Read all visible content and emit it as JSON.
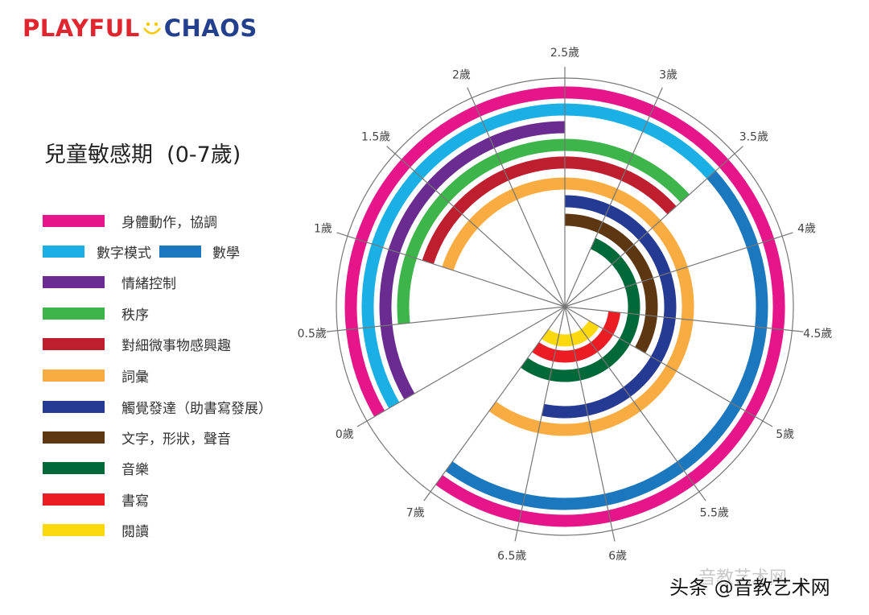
{
  "logo": {
    "part1": "PLAYFUL",
    "part2": "CHAOS"
  },
  "title": "兒童敏感期  (0-7歲)",
  "legend": [
    {
      "label": "身體動作，協調",
      "color": "#e6168a"
    },
    {
      "label": "數字模式",
      "color": "#1ab0e6",
      "label2": "數學",
      "color2": "#1b78bf"
    },
    {
      "label": "情緒控制",
      "color": "#6a2c91"
    },
    {
      "label": "秩序",
      "color": "#3db54a"
    },
    {
      "label": "對細微事物感興趣",
      "color": "#be1e2d"
    },
    {
      "label": "詞彙",
      "color": "#f9ac41"
    },
    {
      "label": "觸覺發達（助書寫發展）",
      "color": "#253a93"
    },
    {
      "label": "文字，形狀，聲音",
      "color": "#5c3712"
    },
    {
      "label": "音樂",
      "color": "#00693a"
    },
    {
      "label": "書寫",
      "color": "#ec1c24"
    },
    {
      "label": "閱讀",
      "color": "#fcd80e"
    }
  ],
  "watermark": {
    "text": "头条 @音教艺术网",
    "faint": "音教艺术网"
  },
  "chart_data": {
    "type": "radial-timeline",
    "title": "兒童敏感期 (0-7歲)",
    "unit": "歲",
    "ticks": [
      "0歲",
      "0.5歲",
      "1歲",
      "1.5歲",
      "2歲",
      "2.5歲",
      "3歲",
      "3.5歲",
      "4歲",
      "4.5歲",
      "5歲",
      "5.5歲",
      "6歲",
      "6.5歲",
      "7歲"
    ],
    "tick_values": [
      0,
      0.5,
      1,
      1.5,
      2,
      2.5,
      3,
      3.5,
      4,
      4.5,
      5,
      5.5,
      6,
      6.5,
      7
    ],
    "series": [
      {
        "name": "身體動作，協調",
        "color": "#e6168a",
        "start": 0,
        "end": 7,
        "ring": 1
      },
      {
        "name": "數字模式",
        "color": "#1ab0e6",
        "start": 0,
        "end": 3.5,
        "ring": 2
      },
      {
        "name": "數學",
        "color": "#1b78bf",
        "start": 3.5,
        "end": 7,
        "ring": 2
      },
      {
        "name": "情緒控制",
        "color": "#6a2c91",
        "start": 0,
        "end": 2.5,
        "ring": 3
      },
      {
        "name": "秩序",
        "color": "#3db54a",
        "start": 0.5,
        "end": 3.5,
        "ring": 4
      },
      {
        "name": "對細微事物感興趣",
        "color": "#be1e2d",
        "start": 1,
        "end": 3.5,
        "ring": 5
      },
      {
        "name": "詞彙",
        "color": "#f9ac41",
        "start": 1,
        "end": 7,
        "ring": 6
      },
      {
        "name": "觸覺發達（助書寫發展）",
        "color": "#253a93",
        "start": 2.5,
        "end": 6.5,
        "ring": 7
      },
      {
        "name": "文字，形狀，聲音",
        "color": "#5c3712",
        "start": 2.5,
        "end": 5,
        "ring": 8
      },
      {
        "name": "音樂",
        "color": "#00693a",
        "start": 3,
        "end": 7,
        "ring": 9
      },
      {
        "name": "書寫",
        "color": "#ec1c24",
        "start": 4.5,
        "end": 7,
        "ring": 10
      },
      {
        "name": "閱讀",
        "color": "#fcd80e",
        "start": 5,
        "end": 7,
        "ring": 11
      }
    ]
  }
}
